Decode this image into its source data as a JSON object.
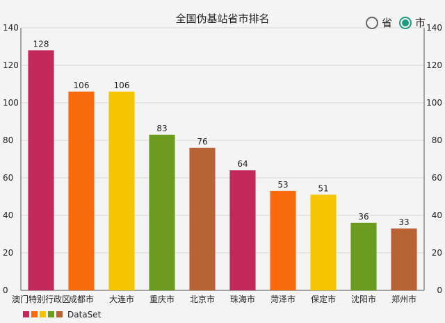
{
  "toggle": {
    "province_label": "省",
    "city_label": "市",
    "selected": "市",
    "accent_color": "#1a9c7e"
  },
  "chart_data": {
    "type": "bar",
    "title": "全国伪基站省市排名",
    "categories": [
      "澳门特别行政区",
      "成都市",
      "大连市",
      "重庆市",
      "北京市",
      "珠海市",
      "菏泽市",
      "保定市",
      "沈阳市",
      "郑州市"
    ],
    "series": [
      {
        "name": "DataSet",
        "values": [
          128,
          106,
          106,
          83,
          76,
          64,
          53,
          51,
          36,
          33
        ]
      }
    ],
    "colors": [
      "#c2295a",
      "#f96a0c",
      "#f6c501",
      "#6b9b1f",
      "#b86335"
    ],
    "ylim": [
      0,
      140
    ],
    "yticks": [
      0,
      20,
      40,
      60,
      80,
      100,
      120,
      140
    ],
    "grid": true,
    "show_right_axis": true,
    "legend": "bottom-left"
  }
}
